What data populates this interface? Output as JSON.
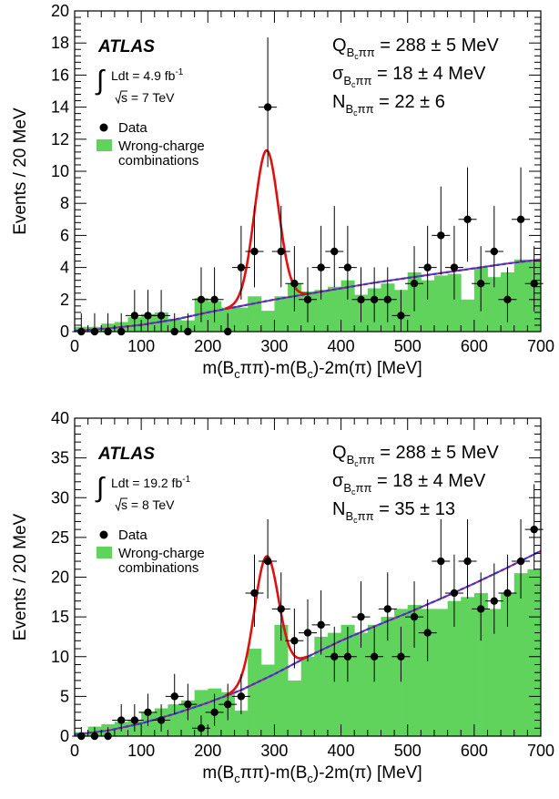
{
  "chart_data": [
    {
      "type": "scatter",
      "panel": "top",
      "xlabel": "m(B_cππ)-m(B_c)-2m(π) [MeV]",
      "ylabel": "Events / 20 MeV",
      "xlim": [
        0,
        700
      ],
      "ylim": [
        0,
        20
      ],
      "xticks": [
        0,
        100,
        200,
        300,
        400,
        500,
        600,
        700
      ],
      "yticks": [
        0,
        2,
        4,
        6,
        8,
        10,
        12,
        14,
        16,
        18,
        20
      ],
      "grid": false,
      "legend_position": "top-left",
      "experiment_label": "ATLAS",
      "luminosity": {
        "text": "Ldt = 4.9 fb",
        "exp": "-1"
      },
      "energy": "s = 7 TeV",
      "legend": [
        "Data",
        "Wrong-charge",
        "combinations"
      ],
      "results": [
        {
          "sym": "Q",
          "sub": "B",
          "subsub": "c",
          "tail": "ππ",
          "value": " = 288 ± 5 MeV"
        },
        {
          "sym": "σ",
          "sub": "B",
          "subsub": "c",
          "tail": "ππ",
          "value": " = 18 ± 4 MeV"
        },
        {
          "sym": "N",
          "sub": "B",
          "subsub": "c",
          "tail": "ππ",
          "value": " = 22 ± 6"
        }
      ],
      "data": {
        "x": [
          10,
          30,
          50,
          70,
          90,
          110,
          130,
          150,
          170,
          190,
          210,
          230,
          250,
          270,
          290,
          310,
          330,
          350,
          370,
          390,
          410,
          430,
          450,
          470,
          490,
          510,
          530,
          550,
          570,
          590,
          610,
          630,
          650,
          670,
          690
        ],
        "y": [
          0,
          0,
          0,
          0,
          1,
          1,
          1,
          0,
          0,
          2,
          2,
          0,
          4,
          5,
          14,
          5,
          3,
          2,
          4,
          5,
          4,
          2,
          2,
          2,
          1,
          3,
          4,
          6,
          4,
          7,
          3,
          5,
          2,
          7,
          3
        ]
      },
      "wrong_charge": {
        "bin_edges": [
          0,
          20,
          40,
          60,
          80,
          100,
          120,
          140,
          160,
          180,
          200,
          220,
          240,
          260,
          280,
          300,
          320,
          340,
          360,
          380,
          400,
          420,
          440,
          460,
          480,
          500,
          520,
          540,
          560,
          580,
          600,
          620,
          640,
          660,
          680,
          700
        ],
        "values": [
          0.3,
          0.3,
          0.5,
          0.6,
          0.9,
          1.1,
          1.2,
          0.8,
          0.7,
          2.1,
          1.9,
          1.5,
          1.5,
          2.2,
          1.3,
          2.2,
          3.0,
          2.5,
          2.6,
          2.8,
          3.2,
          2.3,
          2.7,
          3.0,
          2.6,
          3.7,
          3.2,
          3.5,
          3.6,
          2.0,
          4.0,
          3.4,
          3.7,
          4.5,
          4.4
        ]
      },
      "background_fit": {
        "x": [
          0,
          50,
          100,
          150,
          200,
          250,
          300,
          350,
          400,
          450,
          500,
          550,
          600,
          650,
          700
        ],
        "y": [
          0.05,
          0.2,
          0.42,
          0.75,
          1.2,
          1.6,
          2.0,
          2.35,
          2.7,
          3.05,
          3.35,
          3.65,
          3.95,
          4.25,
          4.5
        ]
      },
      "signal_peak": {
        "mean": 288,
        "sigma": 18,
        "amplitude": 9.4
      }
    },
    {
      "type": "scatter",
      "panel": "bottom",
      "xlabel": "m(B_cππ)-m(B_c)-2m(π) [MeV]",
      "ylabel": "Events / 20 MeV",
      "xlim": [
        0,
        700
      ],
      "ylim": [
        0,
        40
      ],
      "xticks": [
        0,
        100,
        200,
        300,
        400,
        500,
        600,
        700
      ],
      "yticks": [
        0,
        5,
        10,
        15,
        20,
        25,
        30,
        35,
        40
      ],
      "grid": false,
      "legend_position": "top-left",
      "experiment_label": "ATLAS",
      "luminosity": {
        "text": "Ldt = 19.2 fb",
        "exp": "-1"
      },
      "energy": "s = 8 TeV",
      "legend": [
        "Data",
        "Wrong-charge",
        "combinations"
      ],
      "results": [
        {
          "sym": "Q",
          "sub": "B",
          "subsub": "c",
          "tail": "ππ",
          "value": " = 288 ± 5 MeV"
        },
        {
          "sym": "σ",
          "sub": "B",
          "subsub": "c",
          "tail": "ππ",
          "value": " = 18 ± 4 MeV"
        },
        {
          "sym": "N",
          "sub": "B",
          "subsub": "c",
          "tail": "ππ",
          "value": " = 35 ± 13"
        }
      ],
      "data": {
        "x": [
          10,
          30,
          50,
          70,
          90,
          110,
          130,
          150,
          170,
          190,
          210,
          230,
          250,
          270,
          290,
          310,
          330,
          350,
          370,
          390,
          410,
          430,
          450,
          470,
          490,
          510,
          530,
          550,
          570,
          590,
          610,
          630,
          650,
          670,
          690
        ],
        "y": [
          0,
          0,
          0,
          2,
          2,
          3,
          2,
          5,
          4,
          1,
          3,
          4,
          5,
          18,
          22,
          16,
          12,
          13,
          14,
          10,
          10,
          15,
          10,
          16,
          10,
          15,
          13,
          22,
          18,
          22,
          16,
          17,
          18,
          22,
          26
        ]
      },
      "wrong_charge": {
        "bin_edges": [
          0,
          20,
          40,
          60,
          80,
          100,
          120,
          140,
          160,
          180,
          200,
          220,
          240,
          260,
          280,
          300,
          320,
          340,
          360,
          380,
          400,
          420,
          440,
          460,
          480,
          500,
          520,
          540,
          560,
          580,
          600,
          620,
          640,
          660,
          680,
          700
        ],
        "values": [
          0.5,
          1.2,
          1.5,
          1.8,
          2.0,
          3.0,
          3.5,
          4.0,
          4.5,
          5.8,
          6.0,
          5.5,
          3.2,
          11.0,
          9.0,
          14.0,
          7.0,
          10.0,
          12.5,
          13.0,
          14.0,
          13.0,
          14.0,
          15.0,
          16.0,
          16.5,
          16.0,
          16.0,
          17.0,
          17.5,
          18.0,
          16.0,
          18.0,
          20.5,
          21.0
        ]
      },
      "background_fit": {
        "x": [
          0,
          50,
          100,
          150,
          200,
          250,
          300,
          350,
          400,
          450,
          500,
          550,
          600,
          650,
          700
        ],
        "y": [
          0.2,
          0.7,
          1.6,
          2.8,
          4.2,
          5.8,
          7.8,
          10.0,
          12.0,
          13.8,
          15.5,
          17.3,
          19.2,
          21.2,
          23.3
        ]
      },
      "signal_peak": {
        "mean": 288,
        "sigma": 18,
        "amplitude": 15.3
      }
    }
  ]
}
